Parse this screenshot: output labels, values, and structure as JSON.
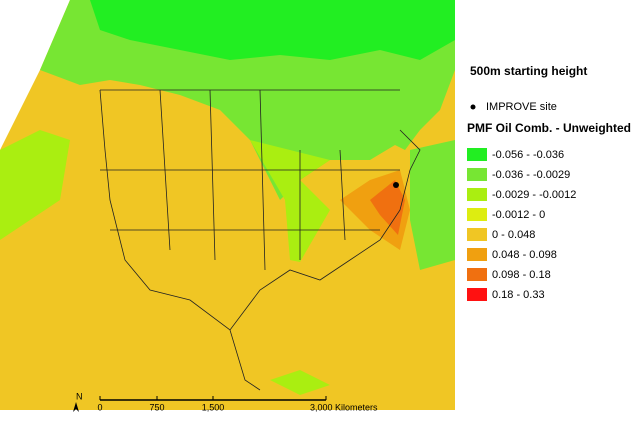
{
  "title": "500m starting height",
  "site_legend": "IMPROVE site",
  "legend": {
    "title": "PMF Oil Comb. - Unweighted",
    "classes": [
      {
        "label": "-0.056 - -0.036",
        "color": "#22ee22"
      },
      {
        "label": "-0.036 - -0.0029",
        "color": "#77e633"
      },
      {
        "label": "-0.0029 - -0.0012",
        "color": "#aaee11"
      },
      {
        "label": "-0.0012 - 0",
        "color": "#dded11"
      },
      {
        "label": "0 - 0.048",
        "color": "#f0c624"
      },
      {
        "label": "0.048 - 0.098",
        "color": "#f0a010"
      },
      {
        "label": "0.098 - 0.18",
        "color": "#f07010"
      },
      {
        "label": "0.18 - 0.33",
        "color": "#ff1111"
      }
    ]
  },
  "scale_bar": {
    "ticks": [
      "0",
      "750",
      "1,500"
    ],
    "unit_label": "3,000 Kilometers"
  },
  "north": "N"
}
